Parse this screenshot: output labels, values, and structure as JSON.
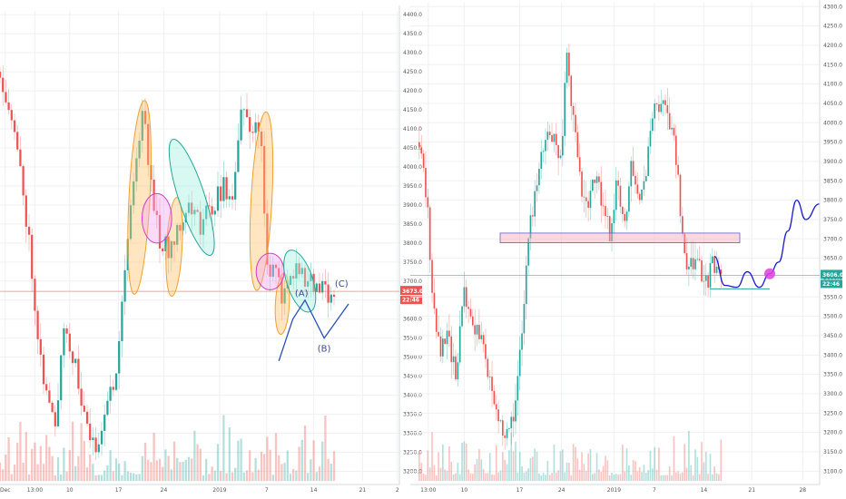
{
  "chart_data": [
    {
      "type": "candlestick",
      "panel": "left",
      "x_tick_labels": [
        "Dec",
        "13:00",
        "10",
        "17",
        "24",
        "2019",
        "7",
        "14",
        "21",
        "2"
      ],
      "y_tick_labels": [
        "3200.0",
        "3250.0",
        "3300.0",
        "3350.0",
        "3400.0",
        "3450.0",
        "3500.0",
        "3550.0",
        "3600.0",
        "3650.0",
        "3700.0",
        "3750.0",
        "3800.0",
        "3850.0",
        "3900.0",
        "3950.0",
        "4000.0",
        "4050.0",
        "4100.0",
        "4150.0",
        "4200.0",
        "4250.0",
        "4300.0",
        "4350.0",
        "4400.0"
      ],
      "ylim": [
        3175,
        4410
      ],
      "price_tag": {
        "value": "3673.0",
        "countdown": "22:46"
      },
      "wave_labels": [
        "(A)",
        "(B)",
        "(C)"
      ],
      "wave_path": [
        [
          16.0,
          3490
        ],
        [
          16.8,
          3600
        ],
        [
          17.5,
          3650
        ],
        [
          18.6,
          3550
        ],
        [
          20.0,
          3640
        ]
      ],
      "wave_label_points": [
        [
          17.3,
          3660
        ],
        [
          18.6,
          3515
        ],
        [
          19.6,
          3685
        ]
      ],
      "annotations": [
        {
          "kind": "ellipse",
          "color": "orange",
          "x": 8.0,
          "y": 3920,
          "rx": 0.6,
          "ry": 255
        },
        {
          "kind": "ellipse",
          "color": "orange",
          "x": 10.0,
          "y": 3790,
          "rx": 0.45,
          "ry": 130
        },
        {
          "kind": "ellipse",
          "color": "teal",
          "x": 11.0,
          "y": 3920,
          "rx": 0.75,
          "ry": 160
        },
        {
          "kind": "ellipse",
          "color": "magenta",
          "x": 9.0,
          "y": 3865,
          "rx": 0.85,
          "ry": 65
        },
        {
          "kind": "ellipse",
          "color": "orange",
          "x": 15.0,
          "y": 3910,
          "rx": 0.6,
          "ry": 235
        },
        {
          "kind": "ellipse",
          "color": "orange",
          "x": 16.2,
          "y": 3640,
          "rx": 0.4,
          "ry": 80
        },
        {
          "kind": "ellipse",
          "color": "magenta",
          "x": 15.5,
          "y": 3725,
          "rx": 0.8,
          "ry": 48
        },
        {
          "kind": "ellipse",
          "color": "teal",
          "x": 17.2,
          "y": 3700,
          "rx": 0.75,
          "ry": 85
        }
      ],
      "hline": 3673
    },
    {
      "type": "candlestick",
      "panel": "right",
      "x_tick_labels": [
        "13:00",
        "10",
        "17",
        "24",
        "2019",
        "7",
        "14",
        "21",
        "28"
      ],
      "y_tick_labels": [
        "3100.0",
        "3150.0",
        "3200.0",
        "3250.0",
        "3300.0",
        "3350.0",
        "3400.0",
        "3450.0",
        "3500.0",
        "3550.0",
        "3600.0",
        "3650.0",
        "3700.0",
        "3750.0",
        "3800.0",
        "3850.0",
        "3900.0",
        "3950.0",
        "4000.0",
        "4050.0",
        "4100.0",
        "4150.0",
        "4200.0",
        "4250.0",
        "4300.0"
      ],
      "ylim": [
        3075,
        4310
      ],
      "price_tag": {
        "value": "3606.0",
        "countdown": "22:46"
      },
      "zone": {
        "y_low": 3690,
        "y_high": 3715,
        "x_from": 6.0,
        "x_to": 22.0
      },
      "support_line": {
        "y": 3571,
        "x_from": 20.0,
        "x_to": 24.0
      },
      "projection": [
        [
          20.3,
          3655
        ],
        [
          21.0,
          3580
        ],
        [
          21.8,
          3575
        ],
        [
          22.5,
          3615
        ],
        [
          23.3,
          3575
        ],
        [
          24.0,
          3610
        ],
        [
          24.6,
          3640
        ],
        [
          25.2,
          3720
        ],
        [
          25.8,
          3800
        ],
        [
          26.4,
          3750
        ],
        [
          27.3,
          3790
        ]
      ],
      "target_dot": {
        "x": 24.0,
        "y": 3610
      }
    }
  ]
}
